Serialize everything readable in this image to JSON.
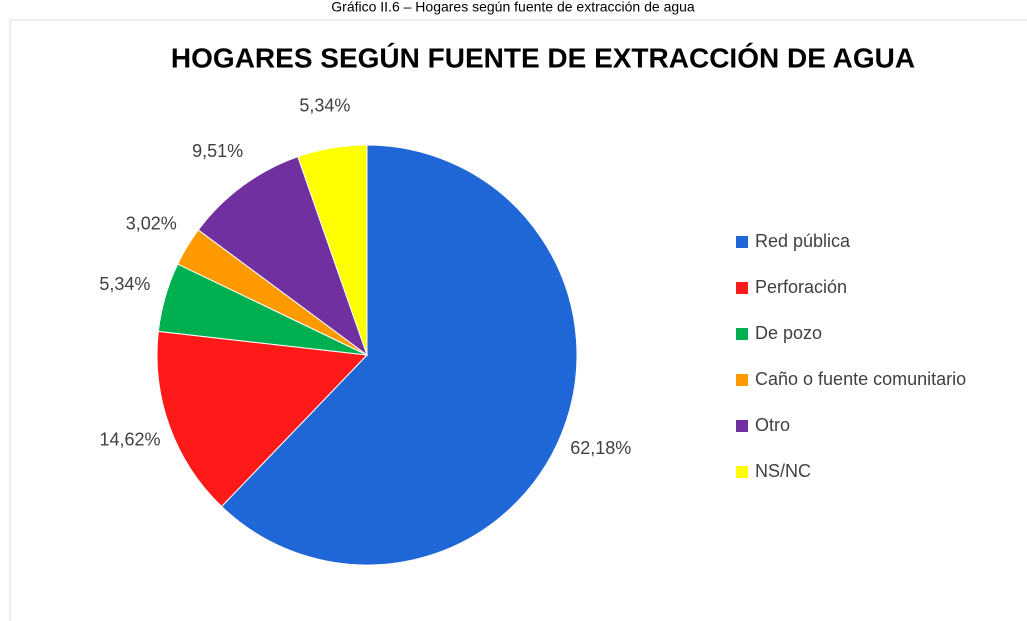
{
  "caption": "Gráfico II.6 – Hogares según fuente de extracción de agua",
  "chart_data": {
    "type": "pie",
    "title": "HOGARES SEGÚN FUENTE DE EXTRACCIÓN DE AGUA",
    "categories": [
      "Red pública",
      "Perforación",
      "De pozo",
      "Caño o fuente comunitario",
      "Otro",
      "NS/NC"
    ],
    "values": [
      62.18,
      14.62,
      5.34,
      3.02,
      9.51,
      5.34
    ],
    "value_labels": [
      "62,18%",
      "14,62%",
      "5,34%",
      "3,02%",
      "9,51%",
      "5,34%"
    ],
    "colors": [
      "#1f66d6",
      "#ff1a1a",
      "#00b050",
      "#ff9900",
      "#7030a0",
      "#ffff00"
    ],
    "legend": "right"
  }
}
